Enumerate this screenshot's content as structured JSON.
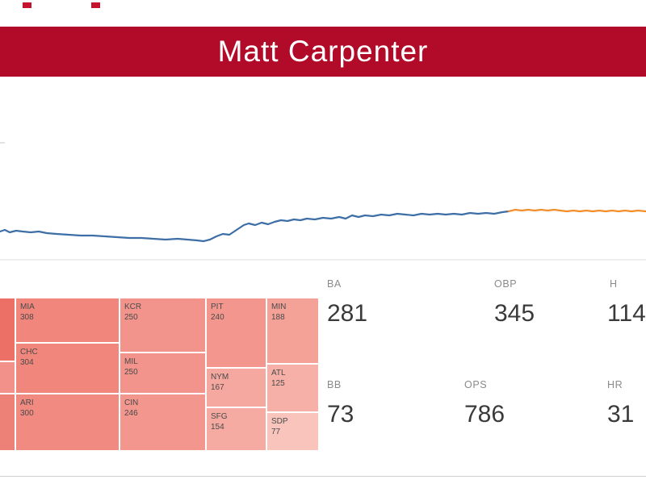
{
  "app": {
    "accent": "#b10b29",
    "dash_color": "#c4122f"
  },
  "header": {
    "title": "Matt Carpenter"
  },
  "stats": [
    {
      "label": "BA",
      "value": "281"
    },
    {
      "label": "OBP",
      "value": "345"
    },
    {
      "label": "H",
      "value": "114"
    },
    {
      "label": "BB",
      "value": "73"
    },
    {
      "label": "OPS",
      "value": "786"
    },
    {
      "label": "HR",
      "value": "31"
    }
  ],
  "chart_data": [
    {
      "type": "line",
      "title": "",
      "xlabel": "",
      "ylabel": "",
      "note": "Rolling batting-average style step line; no axis labels visible. Points are pixel-approximate [x,y] in an 800x250 area.",
      "legend": "none",
      "gridlines": [
        {
          "y": 227,
          "color": "#e4e4e4"
        }
      ],
      "ticks": [
        [
          0,
          6,
          82
        ]
      ],
      "series": [
        {
          "name": "segment-blue",
          "color": "#3d6ea5",
          "points": [
            [
              0,
              192
            ],
            [
              6,
              190
            ],
            [
              12,
              193
            ],
            [
              20,
              191
            ],
            [
              28,
              192
            ],
            [
              38,
              193
            ],
            [
              48,
              192
            ],
            [
              58,
              194
            ],
            [
              70,
              195
            ],
            [
              85,
              196
            ],
            [
              100,
              197
            ],
            [
              115,
              197
            ],
            [
              130,
              198
            ],
            [
              145,
              199
            ],
            [
              160,
              200
            ],
            [
              175,
              200
            ],
            [
              190,
              201
            ],
            [
              205,
              202
            ],
            [
              220,
              201
            ],
            [
              232,
              202
            ],
            [
              244,
              203
            ],
            [
              252,
              204
            ],
            [
              260,
              202
            ],
            [
              268,
              198
            ],
            [
              276,
              195
            ],
            [
              284,
              196
            ],
            [
              290,
              192
            ],
            [
              296,
              188
            ],
            [
              302,
              184
            ],
            [
              308,
              182
            ],
            [
              316,
              184
            ],
            [
              324,
              181
            ],
            [
              332,
              183
            ],
            [
              340,
              180
            ],
            [
              348,
              178
            ],
            [
              356,
              179
            ],
            [
              364,
              177
            ],
            [
              372,
              178
            ],
            [
              380,
              176
            ],
            [
              390,
              177
            ],
            [
              400,
              175
            ],
            [
              410,
              176
            ],
            [
              420,
              174
            ],
            [
              428,
              176
            ],
            [
              436,
              172
            ],
            [
              444,
              174
            ],
            [
              452,
              172
            ],
            [
              462,
              173
            ],
            [
              472,
              171
            ],
            [
              482,
              172
            ],
            [
              492,
              170
            ],
            [
              502,
              171
            ],
            [
              512,
              172
            ],
            [
              522,
              170
            ],
            [
              532,
              171
            ],
            [
              542,
              170
            ],
            [
              552,
              171
            ],
            [
              562,
              170
            ],
            [
              572,
              171
            ],
            [
              582,
              169
            ],
            [
              592,
              170
            ],
            [
              602,
              169
            ],
            [
              612,
              170
            ],
            [
              622,
              168
            ],
            [
              630,
              167
            ]
          ]
        },
        {
          "name": "segment-orange",
          "color": "#f28e2b",
          "points": [
            [
              630,
              167
            ],
            [
              638,
              165
            ],
            [
              646,
              166
            ],
            [
              654,
              165
            ],
            [
              662,
              166
            ],
            [
              670,
              165
            ],
            [
              678,
              166
            ],
            [
              686,
              165
            ],
            [
              694,
              166
            ],
            [
              702,
              167
            ],
            [
              710,
              166
            ],
            [
              718,
              167
            ],
            [
              726,
              166
            ],
            [
              734,
              167
            ],
            [
              742,
              166
            ],
            [
              750,
              167
            ],
            [
              758,
              166
            ],
            [
              766,
              167
            ],
            [
              774,
              166
            ],
            [
              782,
              167
            ],
            [
              790,
              166
            ],
            [
              800,
              167
            ]
          ]
        }
      ]
    },
    {
      "type": "treemap",
      "title": "",
      "cells": [
        {
          "code": "MIA",
          "value": "308",
          "color": "#f1867c"
        },
        {
          "code": "CHC",
          "value": "304",
          "color": "#f1867c"
        },
        {
          "code": "ARI",
          "value": "300",
          "color": "#f18a80"
        },
        {
          "code": "KCR",
          "value": "250",
          "color": "#f2948c"
        },
        {
          "code": "MIL",
          "value": "250",
          "color": "#f2948c"
        },
        {
          "code": "CIN",
          "value": "246",
          "color": "#f2968e"
        },
        {
          "code": "PIT",
          "value": "240",
          "color": "#f2968e"
        },
        {
          "code": "NYM",
          "value": "167",
          "color": "#f5a89f"
        },
        {
          "code": "SFG",
          "value": "154",
          "color": "#f5aba2"
        },
        {
          "code": "MIN",
          "value": "188",
          "color": "#f4a198"
        },
        {
          "code": "ATL",
          "value": "125",
          "color": "#f6b0a7"
        },
        {
          "code": "SDP",
          "value": "77",
          "color": "#f9c4bc"
        },
        {
          "code": "",
          "value": "",
          "color": "#ec7065"
        },
        {
          "code": "",
          "value": "",
          "color": "#f29189"
        },
        {
          "code": "",
          "value": "",
          "color": "#ee8177"
        }
      ]
    }
  ]
}
